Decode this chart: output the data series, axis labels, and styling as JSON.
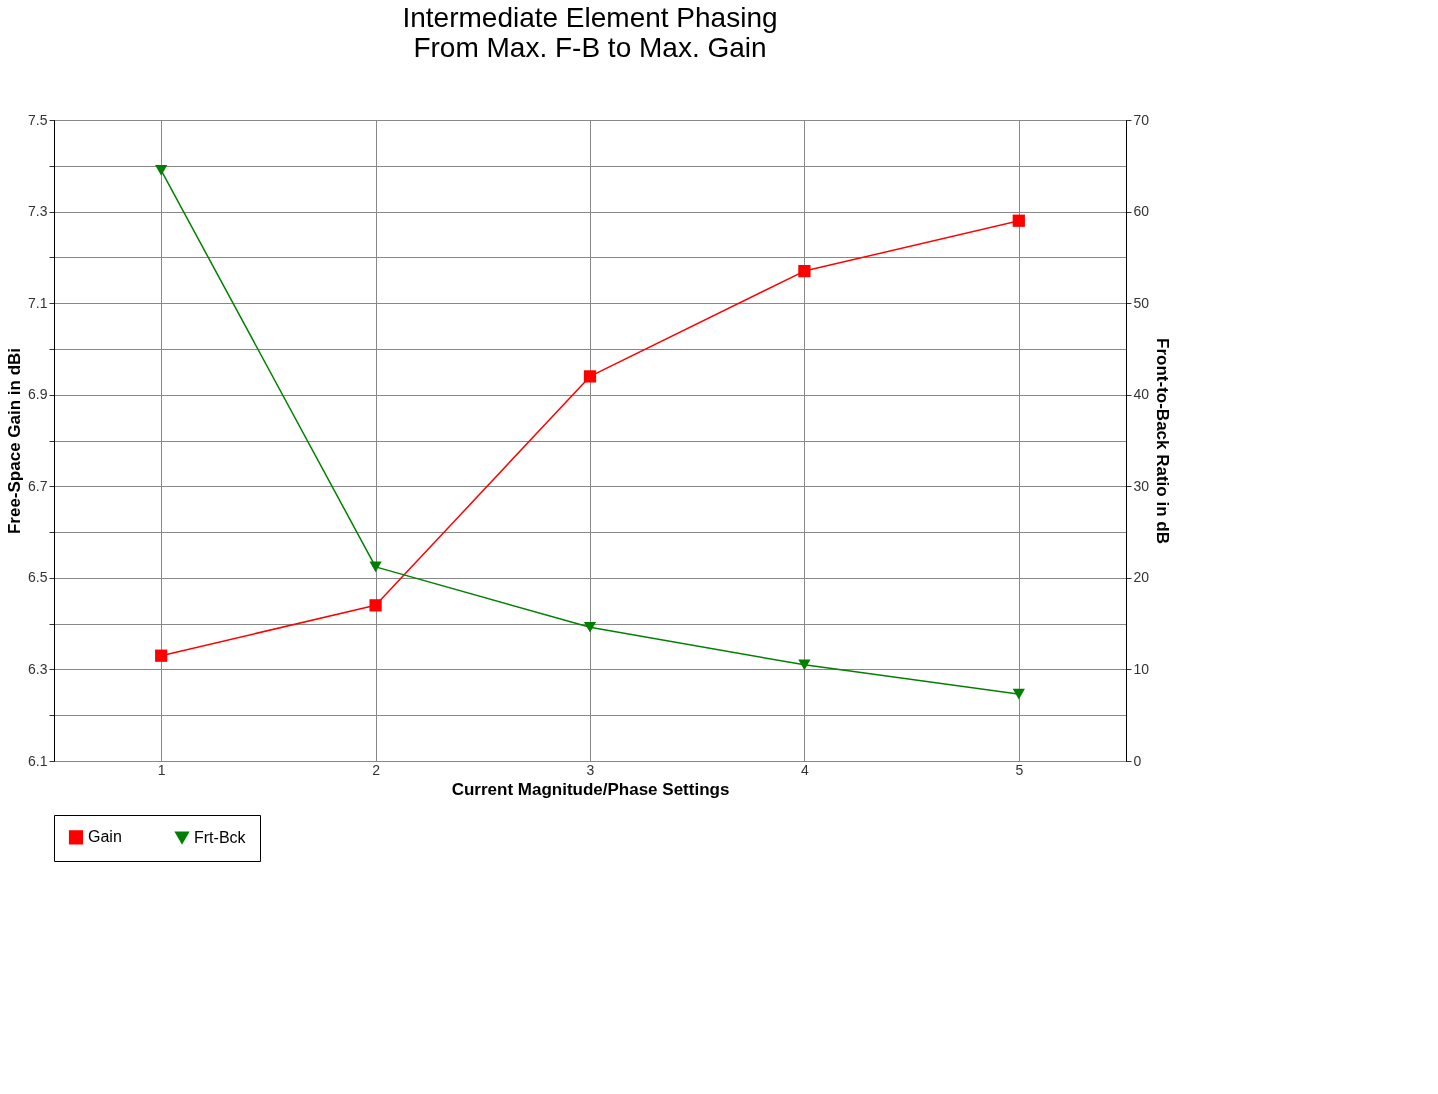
{
  "chart_data": {
    "type": "line",
    "title": [
      "Intermediate Element Phasing",
      "From Max. F-B to Max. Gain"
    ],
    "xlabel": "Current Magnitude/Phase Settings",
    "ylabel": "Free-Space Gain in dBi",
    "y2label": "Front-to-Back Ratio in dB",
    "categories": [
      "1",
      "2",
      "3",
      "4",
      "5"
    ],
    "series": [
      {
        "name": "Gain",
        "color": "#ff0000",
        "marker": "square",
        "values": [
          6.33,
          6.44,
          6.94,
          7.17,
          7.28
        ]
      },
      {
        "name": "Frt-Bck",
        "color": "#008000",
        "marker": "triangle",
        "axis": "y2",
        "values": [
          64.5,
          21.2,
          14.6,
          10.5,
          7.3
        ]
      }
    ],
    "ylim": [
      6.1,
      7.5
    ],
    "yticks": [
      6.1,
      {
        "value": 6.2,
        "label": null
      },
      6.3,
      {
        "value": 6.4,
        "label": null
      },
      6.5,
      {
        "value": 6.6,
        "label": null
      },
      6.7,
      {
        "value": 6.8,
        "label": null
      },
      6.9,
      {
        "value": 7.0,
        "label": null
      },
      7.1,
      {
        "value": 7.2,
        "label": null
      },
      7.3,
      {
        "value": 7.4,
        "label": null
      },
      7.5
    ],
    "y2lim": [
      0,
      70
    ],
    "y2ticks": [
      0,
      10,
      20,
      30,
      40,
      50,
      60,
      70
    ],
    "grid": true,
    "legend": "bottom",
    "line_style": "solid"
  }
}
